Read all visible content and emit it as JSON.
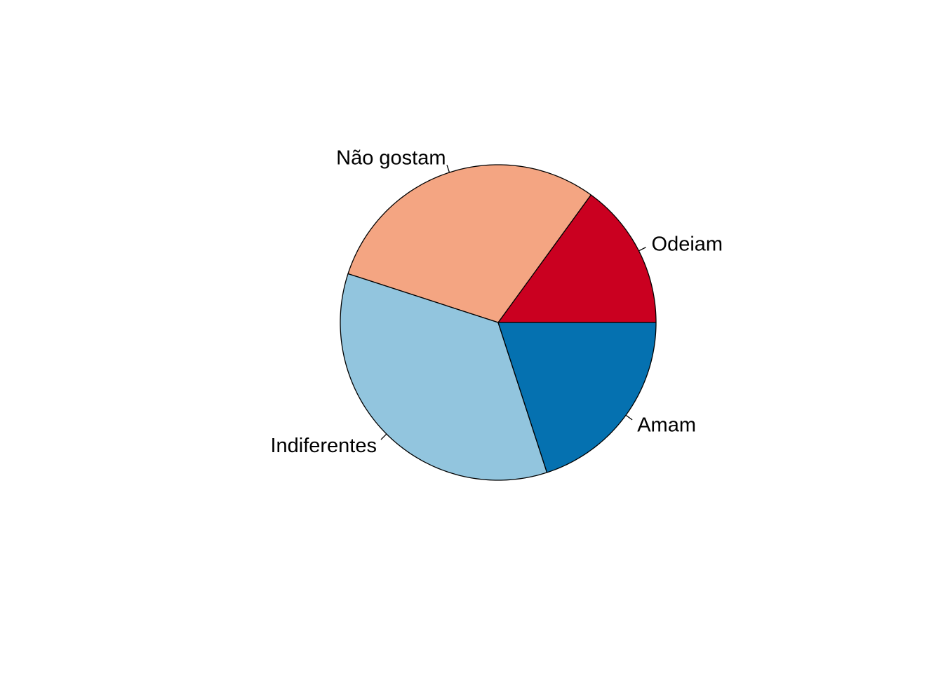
{
  "chart_data": {
    "type": "pie",
    "title": "",
    "direction": "counterclockwise",
    "start_angle_deg": 0,
    "slices": [
      {
        "label": "Odeiam",
        "value": 15,
        "color": "#CA0020"
      },
      {
        "label": "Não gostam",
        "value": 30,
        "color": "#F4A582"
      },
      {
        "label": "Indiferentes",
        "value": 35,
        "color": "#92C5DE"
      },
      {
        "label": "Amam",
        "value": 20,
        "color": "#0571B0"
      }
    ]
  }
}
